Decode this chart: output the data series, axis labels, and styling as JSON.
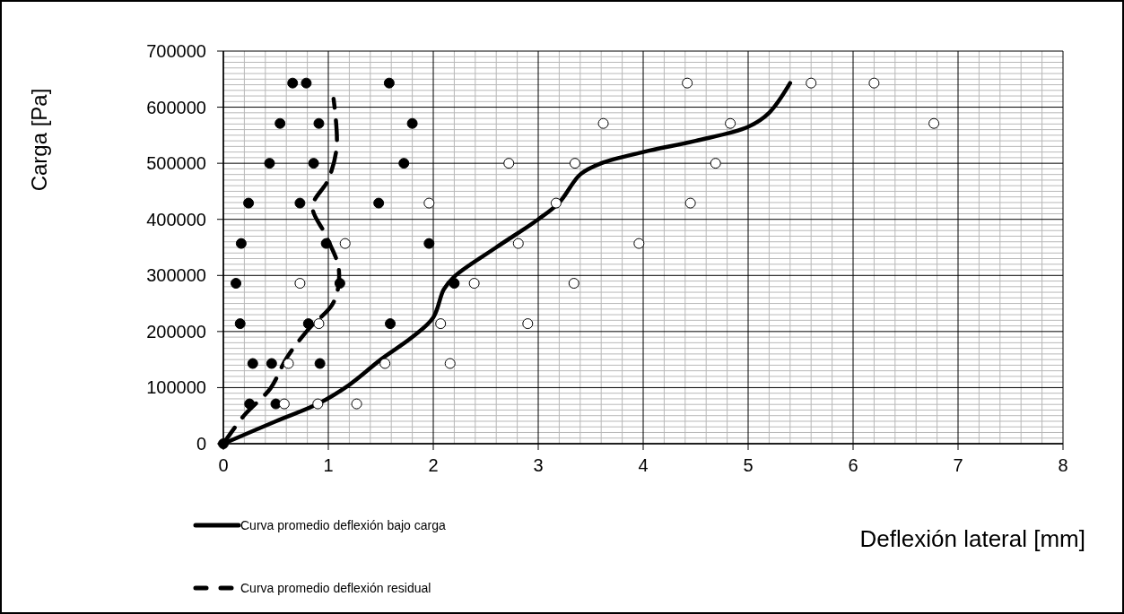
{
  "chart_data": {
    "type": "scatter",
    "xlabel": "Deflexión lateral [mm]",
    "ylabel": "Carga [Pa]",
    "xlim": [
      0,
      8
    ],
    "xticks": [
      0,
      1,
      2,
      3,
      4,
      5,
      6,
      7,
      8
    ],
    "ylim": [
      0,
      700000
    ],
    "yticks": [
      0,
      100000,
      200000,
      300000,
      400000,
      500000,
      600000,
      700000
    ],
    "grid": true,
    "legend": "bottom left",
    "series": [
      {
        "marker": "circle",
        "color": "#000000",
        "x": [
          0,
          0.25,
          0.5,
          0.28,
          0.46,
          0.92,
          0.16,
          0.81,
          1.59,
          0.12,
          1.11,
          2.2,
          0.17,
          0.98,
          1.96,
          0.24,
          0.73,
          1.48,
          0.44,
          0.86,
          1.72,
          0.54,
          0.91,
          1.8,
          0.66,
          0.79,
          1.58
        ],
        "values": [
          0,
          71000,
          71000,
          143000,
          143000,
          143000,
          214000,
          214000,
          214000,
          286000,
          286000,
          286000,
          357000,
          357000,
          357000,
          429000,
          429000,
          429000,
          500000,
          500000,
          500000,
          571000,
          571000,
          571000,
          643000,
          643000,
          643000
        ]
      },
      {
        "marker": "circle",
        "color": "#ffffff",
        "x": [
          0.58,
          0.9,
          1.27,
          0.62,
          1.54,
          2.16,
          0.91,
          2.07,
          2.9,
          0.73,
          2.39,
          3.34,
          1.16,
          2.81,
          3.96,
          1.96,
          3.17,
          4.45,
          2.72,
          3.35,
          4.69,
          3.62,
          4.83,
          6.77,
          4.42,
          5.6,
          6.2
        ],
        "values": [
          71000,
          71000,
          71000,
          143000,
          143000,
          143000,
          214000,
          214000,
          214000,
          286000,
          286000,
          286000,
          357000,
          357000,
          357000,
          429000,
          429000,
          429000,
          500000,
          500000,
          500000,
          571000,
          571000,
          571000,
          643000,
          643000,
          643000
        ]
      },
      {
        "type": "line",
        "name": "Curva promedio deflexión bajo carga",
        "color": "#000000",
        "line_style": "solid",
        "x": [
          0,
          0.5,
          0.9,
          1.2,
          1.5,
          1.8,
          2.0,
          2.1,
          2.2,
          2.6,
          3.0,
          3.2,
          3.4,
          3.6,
          4.0,
          4.5,
          5.0,
          5.2,
          5.4
        ],
        "values": [
          0,
          40000,
          71000,
          105000,
          150000,
          190000,
          225000,
          275000,
          298000,
          350000,
          400000,
          430000,
          480000,
          500000,
          520000,
          540000,
          565000,
          590000,
          643000
        ]
      },
      {
        "type": "line",
        "name": "Curva promedio deflexión residual",
        "color": "#000000",
        "line_style": "dashed",
        "x": [
          0,
          0.2,
          0.45,
          0.6,
          0.81,
          1.05,
          1.1,
          0.98,
          0.85,
          1.0,
          1.08,
          1.05
        ],
        "values": [
          0,
          51000,
          99000,
          152000,
          204000,
          252000,
          311000,
          370000,
          423000,
          471000,
          530000,
          615000
        ]
      }
    ]
  }
}
